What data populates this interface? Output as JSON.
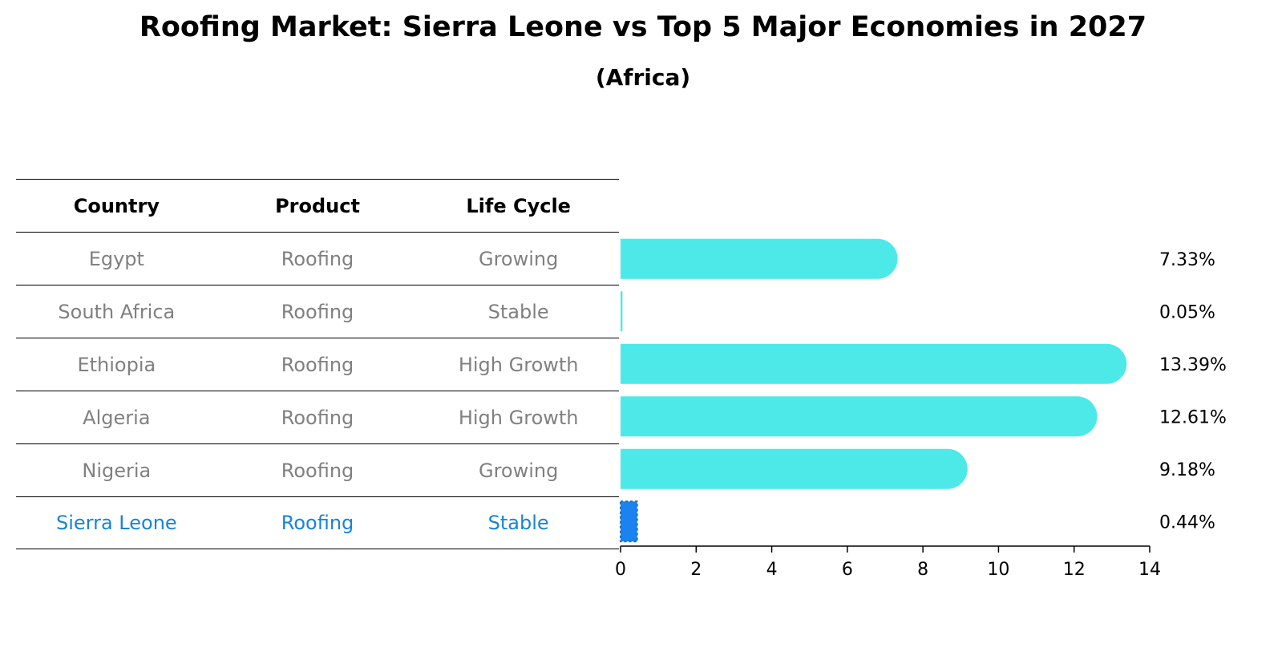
{
  "title": "Roofing Market: Sierra Leone vs Top 5 Major Economies in 2027",
  "subtitle": "(Africa)",
  "colors": {
    "bar": "#4de9e9",
    "highlight_bar": "#1a83f0",
    "highlight_text": "#1a83d6",
    "row_text": "#808080"
  },
  "table": {
    "headers": [
      "Country",
      "Product",
      "Life Cycle"
    ],
    "rows": [
      {
        "country": "Egypt",
        "product": "Roofing",
        "life_cycle": "Growing"
      },
      {
        "country": "South Africa",
        "product": "Roofing",
        "life_cycle": "Stable"
      },
      {
        "country": "Ethiopia",
        "product": "Roofing",
        "life_cycle": "High Growth"
      },
      {
        "country": "Algeria",
        "product": "Roofing",
        "life_cycle": "High Growth"
      },
      {
        "country": "Nigeria",
        "product": "Roofing",
        "life_cycle": "Growing"
      },
      {
        "country": "Sierra Leone",
        "product": "Roofing",
        "life_cycle": "Stable"
      }
    ]
  },
  "chart_data": {
    "type": "bar",
    "orientation": "horizontal",
    "categories": [
      "Egypt",
      "South Africa",
      "Ethiopia",
      "Algeria",
      "Nigeria",
      "Sierra Leone"
    ],
    "values": [
      7.33,
      0.05,
      13.39,
      12.61,
      9.18,
      0.44
    ],
    "value_labels": [
      "7.33%",
      "0.05%",
      "13.39%",
      "12.61%",
      "9.18%",
      "0.44%"
    ],
    "highlight": "Sierra Leone",
    "xlim": [
      0,
      14
    ],
    "xticks": [
      0,
      2,
      4,
      6,
      8,
      10,
      12,
      14
    ],
    "xtick_labels": [
      "0",
      "2",
      "4",
      "6",
      "8",
      "10",
      "12",
      "14"
    ],
    "grid": false
  }
}
